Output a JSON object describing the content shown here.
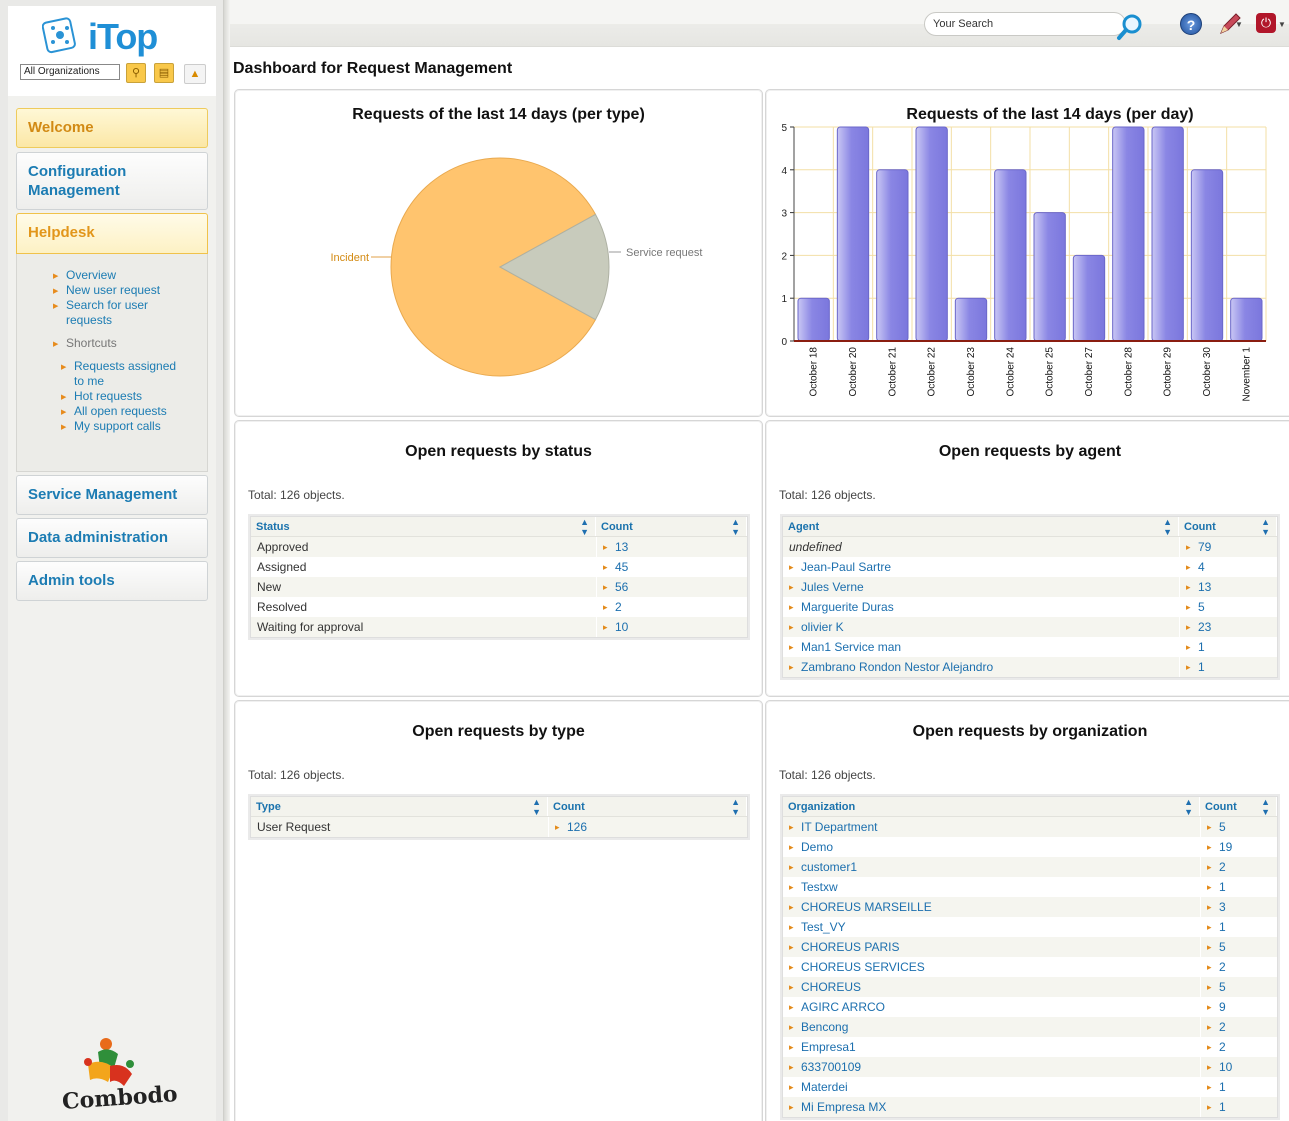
{
  "app": {
    "logo": "iTop",
    "org_filter": "All Organizations"
  },
  "topbar": {
    "search_placeholder": "Your Search",
    "help_glyph": "?"
  },
  "sidebar": {
    "menus": [
      {
        "label": "Welcome"
      },
      {
        "label": "Configuration Management"
      },
      {
        "label": "Helpdesk"
      },
      {
        "label": "Service Management"
      },
      {
        "label": "Data administration"
      },
      {
        "label": "Admin tools"
      }
    ],
    "helpdesk_items": [
      "Overview",
      "New user request",
      "Search for user requests"
    ],
    "shortcuts_label": "Shortcuts",
    "shortcuts": [
      "Requests assigned to me",
      "Hot requests",
      "All open requests",
      "My support calls"
    ],
    "footer_logo": "Combodo"
  },
  "page": {
    "title": "Dashboard for Request Management"
  },
  "panels": {
    "pie_title": "Requests of the last 14 days (per type)",
    "bar_title": "Requests of the last 14 days (per day)",
    "status_title": "Open requests by status",
    "agent_title": "Open requests by agent",
    "type_title": "Open requests by type",
    "org_title": "Open requests by organization",
    "total_text": "Total: 126 objects."
  },
  "chart_data": [
    {
      "type": "pie",
      "title": "Requests of the last 14 days (per type)",
      "categories": [
        "Incident",
        "Service request"
      ],
      "values": [
        84,
        16
      ],
      "colors": [
        "#ffc46e",
        "#c8cbbc"
      ]
    },
    {
      "type": "bar",
      "title": "Requests of the last 14 days (per day)",
      "categories": [
        "October 18",
        "October 20",
        "October 21",
        "October 22",
        "October 23",
        "October 24",
        "October 25",
        "October 27",
        "October 28",
        "October 29",
        "October 30",
        "November 1"
      ],
      "values": [
        1,
        5,
        4,
        5,
        1,
        4,
        3,
        2,
        5,
        5,
        4,
        1
      ],
      "ylim": [
        0,
        5
      ],
      "yticks": [
        "0",
        "1",
        "2",
        "3",
        "4",
        "5"
      ],
      "grid": true,
      "color": "#8a86e4"
    }
  ],
  "tables": {
    "status": {
      "headers": [
        "Status",
        "Count"
      ],
      "rows": [
        [
          "Approved",
          "13"
        ],
        [
          "Assigned",
          "45"
        ],
        [
          "New",
          "56"
        ],
        [
          "Resolved",
          "2"
        ],
        [
          "Waiting for approval",
          "10"
        ]
      ]
    },
    "agent": {
      "headers": [
        "Agent",
        "Count"
      ],
      "rows": [
        [
          "undefined",
          "79"
        ],
        [
          "Jean-Paul Sartre",
          "4"
        ],
        [
          "Jules Verne",
          "13"
        ],
        [
          "Marguerite Duras",
          "5"
        ],
        [
          "olivier K",
          "23"
        ],
        [
          "Man1 Service man",
          "1"
        ],
        [
          "Zambrano Rondon Nestor Alejandro",
          "1"
        ]
      ]
    },
    "type": {
      "headers": [
        "Type",
        "Count"
      ],
      "rows": [
        [
          "User Request",
          "126"
        ]
      ]
    },
    "org": {
      "headers": [
        "Organization",
        "Count"
      ],
      "rows": [
        [
          "IT Department",
          "5"
        ],
        [
          "Demo",
          "19"
        ],
        [
          "customer1",
          "2"
        ],
        [
          "Testxw",
          "1"
        ],
        [
          "CHOREUS MARSEILLE",
          "3"
        ],
        [
          "Test_VY",
          "1"
        ],
        [
          "CHOREUS PARIS",
          "5"
        ],
        [
          "CHOREUS SERVICES",
          "2"
        ],
        [
          "CHOREUS",
          "5"
        ],
        [
          "AGIRC ARRCO",
          "9"
        ],
        [
          "Bencong",
          "2"
        ],
        [
          "Empresa1",
          "2"
        ],
        [
          "633700109",
          "10"
        ],
        [
          "Materdei",
          "1"
        ],
        [
          "Mi Empresa MX",
          "1"
        ]
      ]
    }
  }
}
